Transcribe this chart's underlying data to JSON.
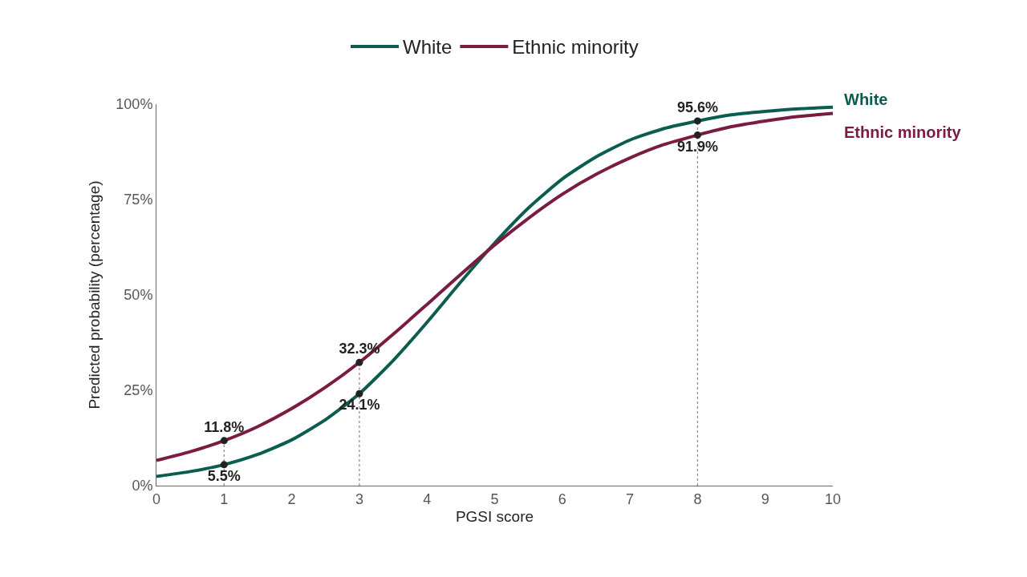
{
  "chart_data": {
    "type": "line",
    "xlabel": "PGSI score",
    "ylabel": "Predicted probability (percentage)",
    "xlim": [
      0,
      10
    ],
    "xticks": [
      0,
      1,
      2,
      3,
      4,
      5,
      6,
      7,
      8,
      9,
      10
    ],
    "ylim": [
      0,
      100
    ],
    "yticks": [
      {
        "value": 0,
        "label": "0%"
      },
      {
        "value": 25,
        "label": "25%"
      },
      {
        "value": 50,
        "label": "50%"
      },
      {
        "value": 75,
        "label": "75%"
      },
      {
        "value": 100,
        "label": "100%"
      }
    ],
    "grid": false,
    "legend": "top",
    "marker": "none",
    "line_style": "solid",
    "series": [
      {
        "name": "White",
        "type": "line",
        "color": "#0d5c50",
        "x": [
          0,
          0.5,
          1,
          1.5,
          2,
          2.5,
          3,
          3.5,
          4,
          4.5,
          5,
          5.5,
          6,
          6.5,
          7,
          7.5,
          8,
          8.5,
          9,
          9.5,
          10
        ],
        "values": [
          2.4,
          3.7,
          5.5,
          8.2,
          12.0,
          17.3,
          24.1,
          32.8,
          42.8,
          53.4,
          63.6,
          72.8,
          80.4,
          86.2,
          90.6,
          93.6,
          95.6,
          97.2,
          98.1,
          98.8,
          99.2
        ]
      },
      {
        "name": "Ethnic minority",
        "type": "line",
        "color": "#7a1b42",
        "x": [
          0,
          0.5,
          1,
          1.5,
          2,
          2.5,
          3,
          3.5,
          4,
          4.5,
          5,
          5.5,
          6,
          6.5,
          7,
          7.5,
          8,
          8.5,
          9,
          9.5,
          10
        ],
        "values": [
          6.6,
          8.9,
          11.8,
          15.5,
          20.2,
          25.8,
          32.3,
          39.7,
          47.5,
          55.4,
          63.1,
          70.1,
          76.4,
          81.6,
          85.9,
          89.4,
          91.9,
          94.1,
          95.6,
          96.8,
          97.6
        ]
      },
      {
        "type": "scatter",
        "color": "#222222",
        "marker": "circle",
        "x": [
          1,
          3,
          8
        ],
        "values": [
          5.5,
          24.1,
          95.6
        ],
        "value_labels": [
          "5.5%",
          "24.1%",
          "95.6%"
        ]
      },
      {
        "type": "scatter",
        "color": "#222222",
        "marker": "circle",
        "x": [
          1,
          3,
          8
        ],
        "values": [
          11.8,
          32.3,
          91.9
        ],
        "value_labels": [
          "11.8%",
          "32.3%",
          "91.9%"
        ]
      }
    ],
    "ref_lines": [
      {
        "axis": "x",
        "value": 1,
        "color": "#888888",
        "line_style": "dotted"
      },
      {
        "axis": "x",
        "value": 3,
        "color": "#888888",
        "line_style": "dotted"
      },
      {
        "axis": "x",
        "value": 8,
        "color": "#888888",
        "line_style": "dotted"
      }
    ]
  }
}
